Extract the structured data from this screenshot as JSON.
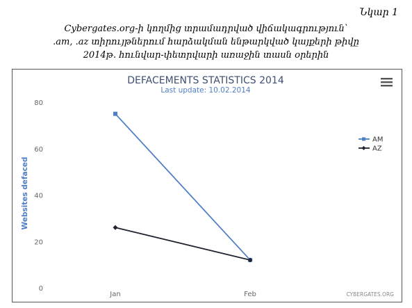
{
  "figure_label": "Նկար 1",
  "caption_lines": [
    "Cybergates.org-ի կողմից տրամադրված վիճակագրություն՝",
    ".am, .az տիրույթներում հարձակման ենթարկված կայքերի թիվը",
    "2014թ. հունվար-փետրվարի առաջին տասն օրերին"
  ],
  "chart_data": {
    "type": "line",
    "title": "DEFACEMENTS STATISTICS 2014",
    "subtitle": "Last update: 10.02.2014",
    "xlabel": "",
    "ylabel": "Websites defaced",
    "categories": [
      "Jan",
      "Feb"
    ],
    "ylim": [
      0,
      80
    ],
    "yticks": [
      0,
      20,
      40,
      60,
      80
    ],
    "grid": false,
    "legend_position": "right",
    "series": [
      {
        "name": "AM",
        "values": [
          75,
          12
        ],
        "color": "#4f7fc8",
        "marker": "square"
      },
      {
        "name": "AZ",
        "values": [
          26,
          12
        ],
        "color": "#1f2430",
        "marker": "diamond"
      }
    ],
    "credit": "CYBERGATES.ORG",
    "menu_icon": "hamburger-menu-icon"
  }
}
